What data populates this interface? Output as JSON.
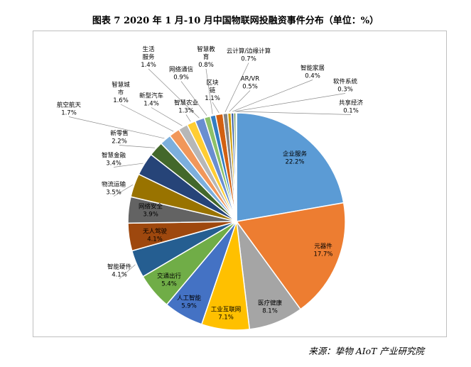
{
  "figure": {
    "title": "图表 7   2020 年 1 月-10 月中国物联网投融资事件分布（单位：%）",
    "source": "来源：挚物 AIoT 产业研究院"
  },
  "chart_data": {
    "type": "pie",
    "title": "图表 7   2020 年 1 月-10 月中国物联网投融资事件分布（单位：%）",
    "unit": "%",
    "slices": [
      {
        "name": "企业服务",
        "value": 22.2,
        "value_label": "22.2%",
        "color": "#5b9bd5"
      },
      {
        "name": "元器件",
        "value": 17.7,
        "value_label": "17.7%",
        "color": "#ed7d31"
      },
      {
        "name": "医疗健康",
        "value": 8.1,
        "value_label": "8.1%",
        "color": "#a5a5a5"
      },
      {
        "name": "工业互联网",
        "value": 7.1,
        "value_label": "7.1%",
        "color": "#ffc000"
      },
      {
        "name": "人工智能",
        "value": 5.9,
        "value_label": "5.9%",
        "color": "#4472c4"
      },
      {
        "name": "交通出行",
        "value": 5.4,
        "value_label": "5.4%",
        "color": "#70ad47"
      },
      {
        "name": "智能硬件",
        "value": 4.1,
        "value_label": "4.1%",
        "color": "#255e91"
      },
      {
        "name": "无人驾驶",
        "value": 4.1,
        "value_label": "4.1%",
        "color": "#9e480e"
      },
      {
        "name": "网络安全",
        "value": 3.9,
        "value_label": "3.9%",
        "color": "#636363"
      },
      {
        "name": "物流运输",
        "value": 3.5,
        "value_label": "3.5%",
        "color": "#997300"
      },
      {
        "name": "智慧金融",
        "value": 3.4,
        "value_label": "3.4%",
        "color": "#264478"
      },
      {
        "name": "新零售",
        "value": 2.2,
        "value_label": "2.2%",
        "color": "#43682b"
      },
      {
        "name": "航空航天",
        "value": 1.7,
        "value_label": "1.7%",
        "color": "#7cafdd"
      },
      {
        "name": "智慧城市",
        "value": 1.6,
        "value_label": "1.6%",
        "color": "#f1975a"
      },
      {
        "name": "新型汽车",
        "value": 1.4,
        "value_label": "1.4%",
        "color": "#b7b7b7"
      },
      {
        "name": "智慧农业",
        "value": 1.3,
        "value_label": "1.3%",
        "color": "#ffcd33"
      },
      {
        "name": "生活服务",
        "value": 1.4,
        "value_label": "1.4%",
        "color": "#698ed0"
      },
      {
        "name": "网络通信",
        "value": 0.9,
        "value_label": "0.9%",
        "color": "#8cc168"
      },
      {
        "name": "智慧教育",
        "value": 0.8,
        "value_label": "0.8%",
        "color": "#327dc2"
      },
      {
        "name": "区块链",
        "value": 1.1,
        "value_label": "1.1%",
        "color": "#d26012"
      },
      {
        "name": "云计算/边缘计算",
        "value": 0.7,
        "value_label": "0.7%",
        "color": "#848484"
      },
      {
        "name": "AR/VR",
        "value": 0.5,
        "value_label": "0.5%",
        "color": "#cc9a00"
      },
      {
        "name": "智能家居",
        "value": 0.4,
        "value_label": "0.4%",
        "color": "#335aa1"
      },
      {
        "name": "软件系统",
        "value": 0.3,
        "value_label": "0.3%",
        "color": "#5a8a39"
      },
      {
        "name": "共享经济",
        "value": 0.1,
        "value_label": "0.1%",
        "color": "#9dc3e6"
      }
    ]
  }
}
